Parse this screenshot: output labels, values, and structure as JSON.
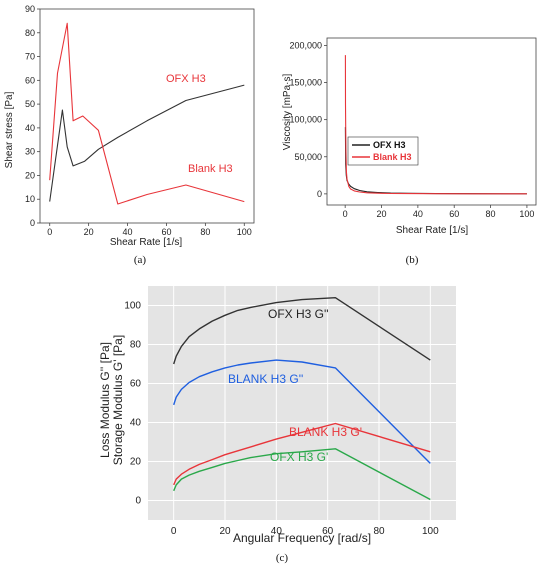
{
  "chart_data": [
    {
      "panel": "(a)",
      "type": "line",
      "xlabel": "Shear Rate [1/s]",
      "ylabel": "Shear stress [Pa]",
      "xlim": [
        -5,
        105
      ],
      "ylim": [
        0,
        90
      ],
      "xticks": [
        0,
        20,
        40,
        60,
        80,
        100
      ],
      "yticks": [
        0,
        10,
        20,
        30,
        40,
        50,
        60,
        70,
        80,
        90
      ],
      "series": [
        {
          "name": "OFX H3",
          "color": "#333333",
          "x": [
            0,
            6.5,
            9,
            12,
            18,
            25,
            35,
            50,
            70,
            100
          ],
          "y": [
            9,
            47.5,
            32,
            24,
            26,
            31,
            36,
            43,
            51.5,
            58
          ]
        },
        {
          "name": "Blank H3",
          "color": "#e8353a",
          "x": [
            0,
            4,
            9,
            12,
            17,
            25,
            35,
            50,
            70,
            100
          ],
          "y": [
            18,
            63,
            84,
            43,
            45,
            39,
            8,
            12,
            16,
            9
          ]
        }
      ],
      "annotations": [
        {
          "text": "OFX H3",
          "color": "#e8353a"
        },
        {
          "text": "Blank H3",
          "color": "#e8353a"
        }
      ]
    },
    {
      "panel": "(b)",
      "type": "line",
      "xlabel": "Shear Rate [1/s]",
      "ylabel": "Viscosity [mPa·s]",
      "xlim": [
        -10,
        105
      ],
      "ylim": [
        -15000,
        210000
      ],
      "xticks": [
        0,
        20,
        40,
        60,
        80,
        100
      ],
      "yticks": [
        0,
        50000,
        100000,
        150000,
        200000
      ],
      "ytick_labels": [
        "0",
        "50,000",
        "100,000",
        "150,000",
        "200,000"
      ],
      "legend": "center-left",
      "series": [
        {
          "name": "OFX H3",
          "color": "#222222",
          "x": [
            0.1,
            0.3,
            0.6,
            1,
            2,
            3,
            5,
            8,
            12,
            18,
            25,
            35,
            50,
            70,
            100
          ],
          "y": [
            90000,
            40000,
            25000,
            18000,
            13000,
            10000,
            7000,
            4500,
            2800,
            1800,
            1100,
            700,
            400,
            250,
            150
          ]
        },
        {
          "name": "Blank H3",
          "color": "#e8353a",
          "x": [
            0.1,
            0.2,
            0.4,
            0.7,
            1,
            2,
            3,
            5,
            8,
            12,
            18,
            25,
            35,
            50,
            70,
            100
          ],
          "y": [
            187000,
            120000,
            60000,
            30000,
            20000,
            10000,
            6500,
            4000,
            2500,
            1500,
            900,
            500,
            300,
            200,
            120,
            80
          ]
        }
      ]
    },
    {
      "panel": "(c)",
      "type": "line",
      "xlabel": "Angular Frequency [rad/s]",
      "ylabel": "Loss Modulus G'' [Pa]",
      "ylabel2": "Storage Modulus G' [Pa]",
      "xlim": [
        -10,
        110
      ],
      "ylim": [
        -10,
        110
      ],
      "xticks": [
        0,
        20,
        40,
        60,
        80,
        100
      ],
      "yticks": [
        0,
        20,
        40,
        60,
        80,
        100
      ],
      "series": [
        {
          "name": "OFX H3 G''",
          "color": "#333333",
          "x": [
            0,
            1,
            3,
            6,
            10,
            15,
            20,
            25,
            30,
            40,
            50,
            63,
            100
          ],
          "y": [
            70,
            74,
            79,
            84,
            88,
            92,
            95,
            97.5,
            99,
            101.5,
            103,
            104,
            72
          ]
        },
        {
          "name": "BLANK H3 G''",
          "color": "#1f5fe0",
          "x": [
            0,
            1,
            3,
            6,
            10,
            15,
            20,
            25,
            30,
            40,
            50,
            63,
            100
          ],
          "y": [
            49,
            53,
            57,
            60.5,
            63.5,
            66,
            68,
            69.5,
            70.5,
            72,
            71,
            68,
            19
          ]
        },
        {
          "name": "BLANK H3 G'",
          "color": "#e8353a",
          "x": [
            0,
            1,
            3,
            6,
            10,
            15,
            20,
            25,
            30,
            40,
            50,
            63,
            100
          ],
          "y": [
            8,
            11,
            13.5,
            16,
            18.5,
            21,
            23.5,
            25.5,
            27.5,
            31.5,
            35,
            39.5,
            25
          ]
        },
        {
          "name": "OFX H3 G'",
          "color": "#2aa84a",
          "x": [
            0,
            1,
            3,
            6,
            10,
            15,
            20,
            25,
            30,
            40,
            50,
            63,
            100
          ],
          "y": [
            5,
            8,
            11,
            13,
            15,
            17,
            19,
            20.5,
            22,
            24,
            25,
            26.5,
            0.5
          ]
        }
      ],
      "annotations": [
        {
          "text": "OFX H3 G''",
          "color": "#222222"
        },
        {
          "text": "BLANK H3 G''",
          "color": "#1f5fe0"
        },
        {
          "text": "BLANK H3 G'",
          "color": "#e8353a"
        },
        {
          "text": "OFX H3 G'",
          "color": "#2aa84a"
        }
      ]
    }
  ]
}
